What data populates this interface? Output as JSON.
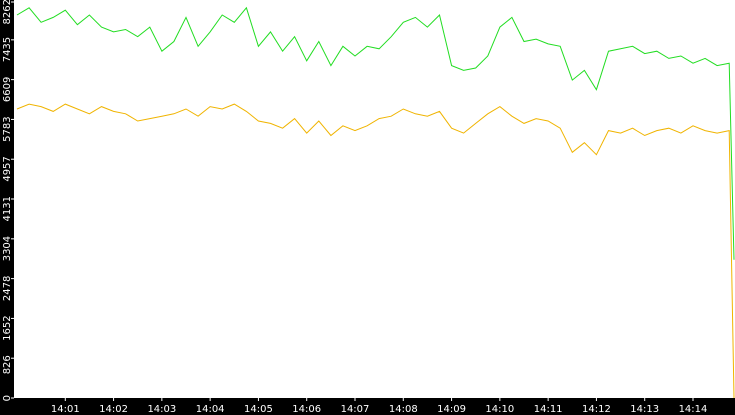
{
  "chart_data": {
    "type": "line",
    "x": [
      0,
      0.25,
      0.5,
      0.75,
      1,
      1.25,
      1.5,
      1.75,
      2,
      2.25,
      2.5,
      2.75,
      3,
      3.25,
      3.5,
      3.75,
      4,
      4.25,
      4.5,
      4.75,
      5,
      5.25,
      5.5,
      5.75,
      6,
      6.25,
      6.5,
      6.75,
      7,
      7.25,
      7.5,
      7.75,
      8,
      8.25,
      8.5,
      8.75,
      9,
      9.25,
      9.5,
      9.75,
      10,
      10.25,
      10.5,
      10.75,
      11,
      11.25,
      11.5,
      11.75,
      12,
      12.25,
      12.5,
      12.75,
      13,
      13.25,
      13.5,
      13.75,
      14,
      14.25,
      14.5,
      14.75,
      14.85
    ],
    "series": [
      {
        "color": "#22dd22",
        "values": [
          7950,
          8100,
          7800,
          7900,
          8050,
          7750,
          7950,
          7700,
          7600,
          7650,
          7500,
          7700,
          7200,
          7400,
          7900,
          7300,
          7600,
          7950,
          7800,
          8100,
          7300,
          7600,
          7200,
          7500,
          7000,
          7400,
          6900,
          7300,
          7100,
          7300,
          7250,
          7500,
          7800,
          7900,
          7700,
          7950,
          6900,
          6800,
          6850,
          7100,
          7700,
          7900,
          7400,
          7450,
          7350,
          7300,
          6600,
          6800,
          6400,
          7200,
          7250,
          7300,
          7150,
          7200,
          7050,
          7100,
          6950,
          7050,
          6900,
          6950,
          2870
        ]
      },
      {
        "color": "#f0b400",
        "values": [
          6000,
          6100,
          6050,
          5950,
          6100,
          6000,
          5900,
          6050,
          5950,
          5900,
          5750,
          5800,
          5850,
          5900,
          6000,
          5850,
          6050,
          6000,
          6100,
          5950,
          5750,
          5700,
          5600,
          5800,
          5500,
          5750,
          5450,
          5650,
          5550,
          5650,
          5800,
          5850,
          6000,
          5900,
          5850,
          5950,
          5600,
          5500,
          5700,
          5900,
          6050,
          5850,
          5700,
          5800,
          5750,
          5600,
          5100,
          5300,
          5050,
          5550,
          5500,
          5600,
          5450,
          5550,
          5600,
          5500,
          5650,
          5550,
          5500,
          5550,
          0
        ]
      }
    ],
    "xlim": [
      0,
      14.87
    ],
    "xticks": [
      {
        "value": 1,
        "label": "14:01"
      },
      {
        "value": 2,
        "label": "14:02"
      },
      {
        "value": 3,
        "label": "14:03"
      },
      {
        "value": 4,
        "label": "14:04"
      },
      {
        "value": 5,
        "label": "14:05"
      },
      {
        "value": 6,
        "label": "14:06"
      },
      {
        "value": 7,
        "label": "14:07"
      },
      {
        "value": 8,
        "label": "14:08"
      },
      {
        "value": 9,
        "label": "14:09"
      },
      {
        "value": 10,
        "label": "14:10"
      },
      {
        "value": 11,
        "label": "14:11"
      },
      {
        "value": 12,
        "label": "14:12"
      },
      {
        "value": 13,
        "label": "14:13"
      },
      {
        "value": 14,
        "label": "14:14"
      }
    ],
    "ylim": [
      0,
      8262
    ],
    "yticks": [
      0,
      826,
      1652,
      2478,
      3304,
      4131,
      4957,
      5783,
      6609,
      7435,
      8262
    ]
  }
}
